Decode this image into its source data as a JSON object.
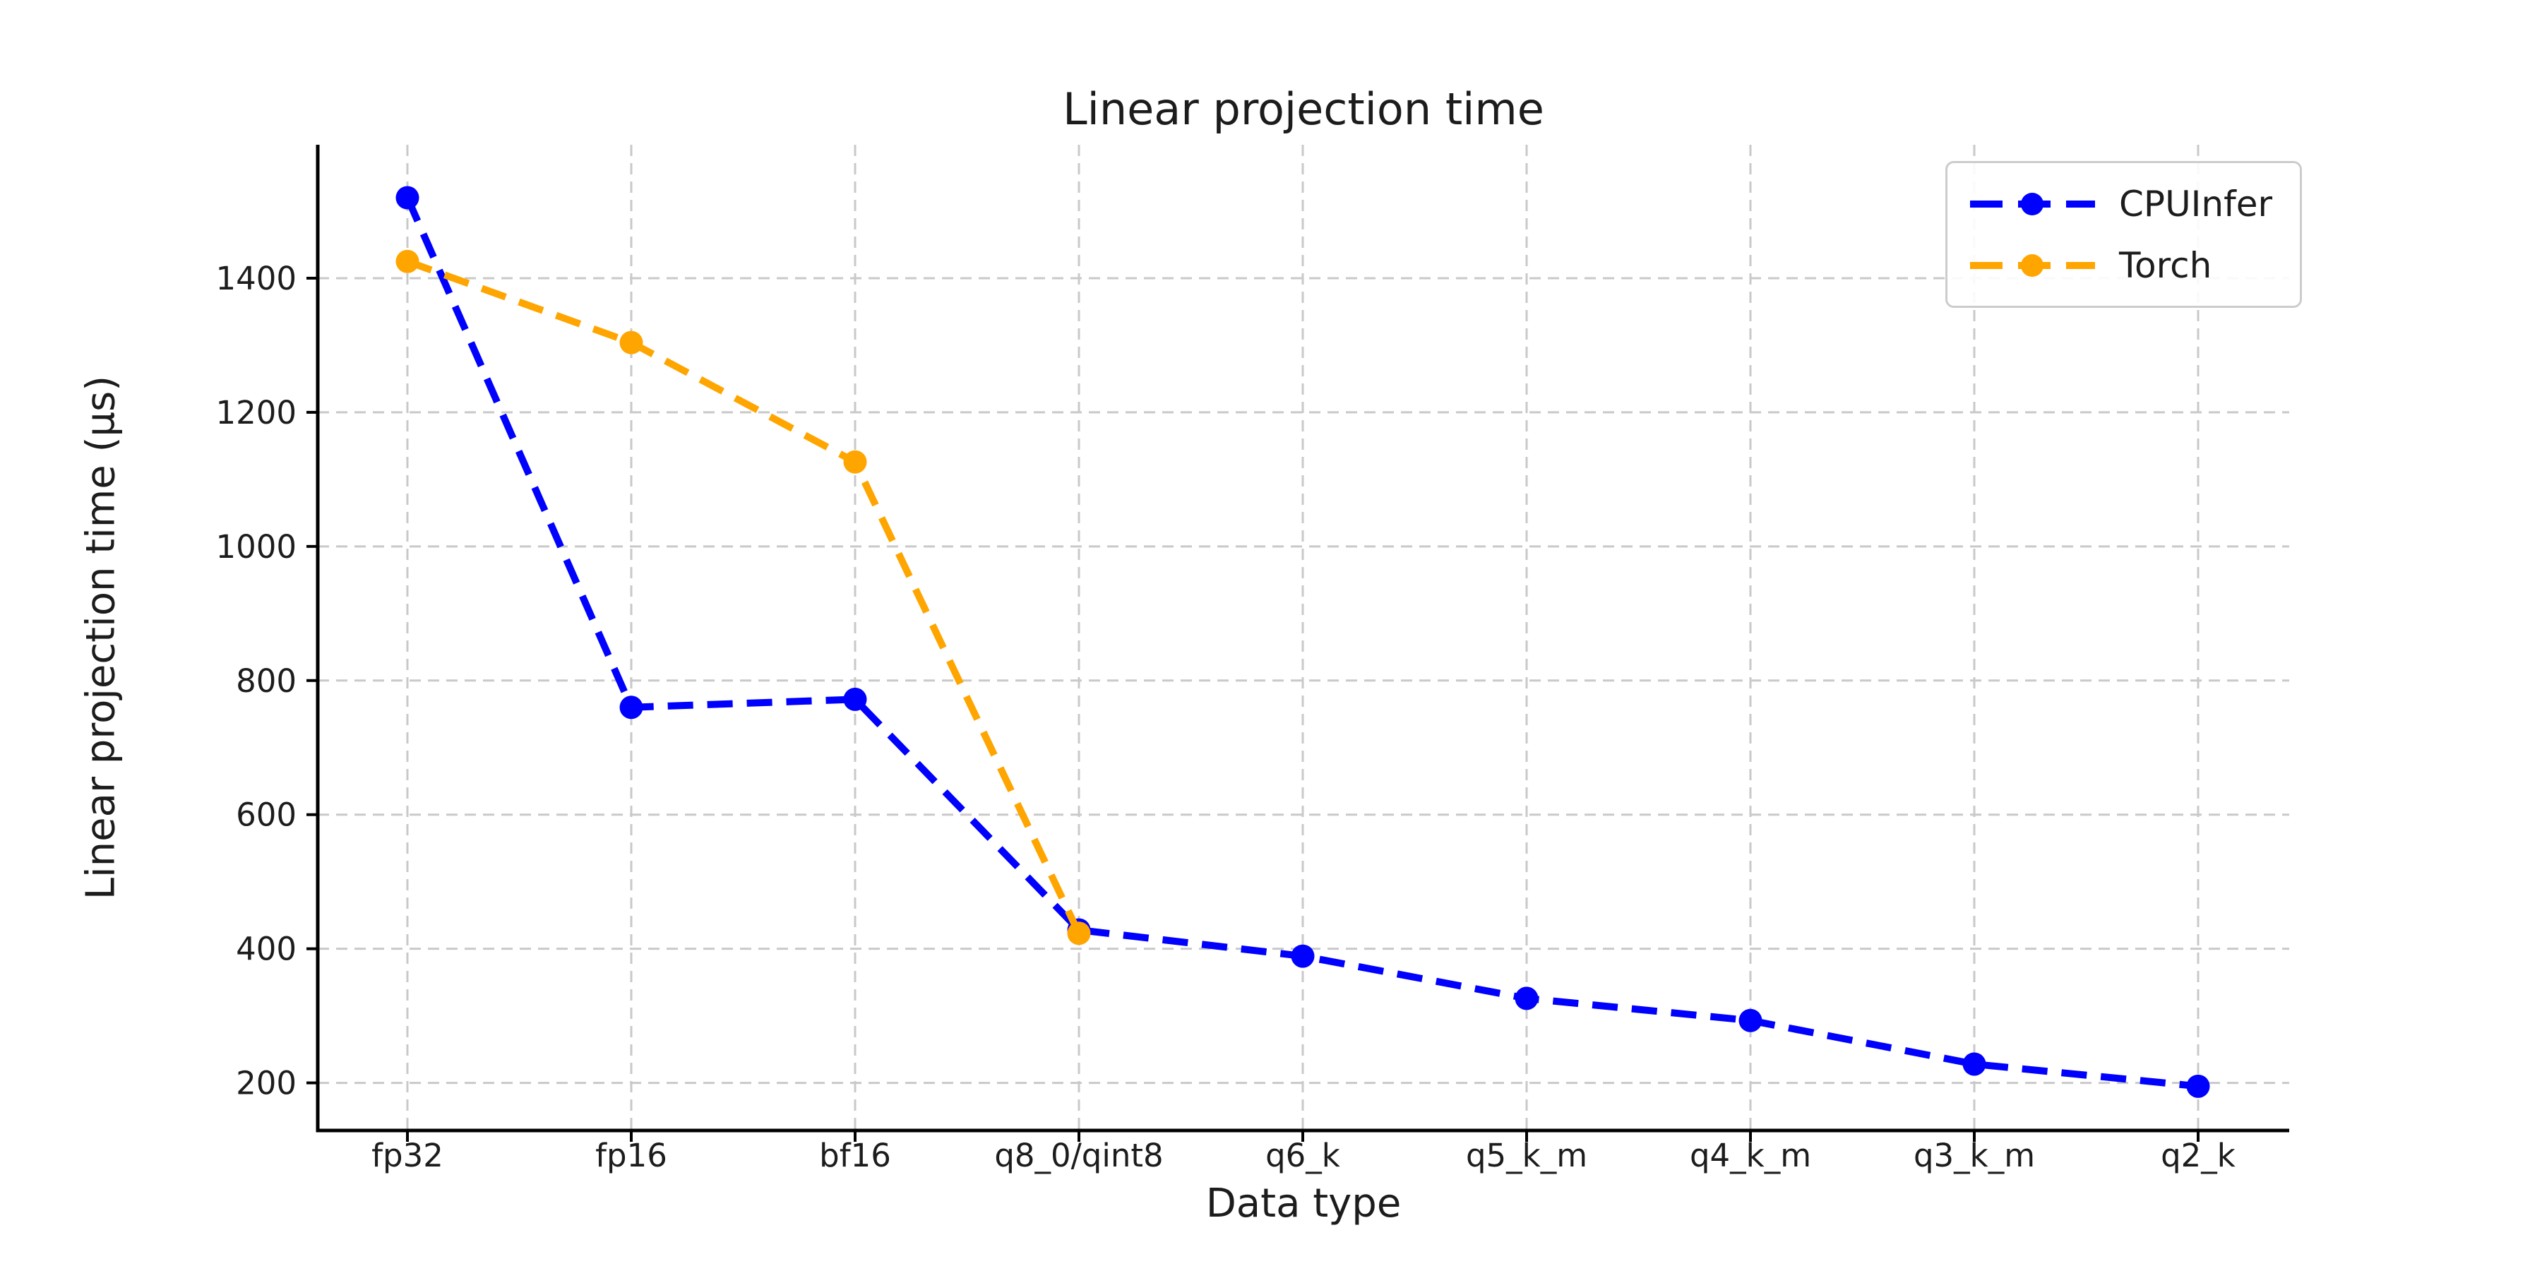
{
  "style": {
    "background": "#ffffff",
    "text_color": "#1c1c1c",
    "grid_color": "#c9c9c9",
    "spine_color": "#000000",
    "legend_border": "#cccccc"
  },
  "chart_data": {
    "type": "line",
    "title": "Linear projection time",
    "xlabel": "Data type",
    "ylabel": "Linear projection time (µs)",
    "categories": [
      "fp32",
      "fp16",
      "bf16",
      "q8_0/qint8",
      "q6_k",
      "q5_k_m",
      "q4_k_m",
      "q3_k_m",
      "q2_k"
    ],
    "series": [
      {
        "name": "CPUInfer",
        "color": "#0000ff",
        "values": [
          1520,
          760,
          772,
          428,
          389,
          326,
          293,
          228,
          195
        ]
      },
      {
        "name": "Torch",
        "color": "#ffa500",
        "values": [
          1425,
          1304,
          1126,
          423,
          null,
          null,
          null,
          null,
          null
        ]
      }
    ],
    "yticks": [
      200,
      400,
      600,
      800,
      1000,
      1200,
      1400
    ],
    "ylim": [
      129,
      1599
    ],
    "grid": true,
    "grid_style": "dashed",
    "line_style": "dashed",
    "marker": "circle",
    "legend_position": "upper right"
  }
}
